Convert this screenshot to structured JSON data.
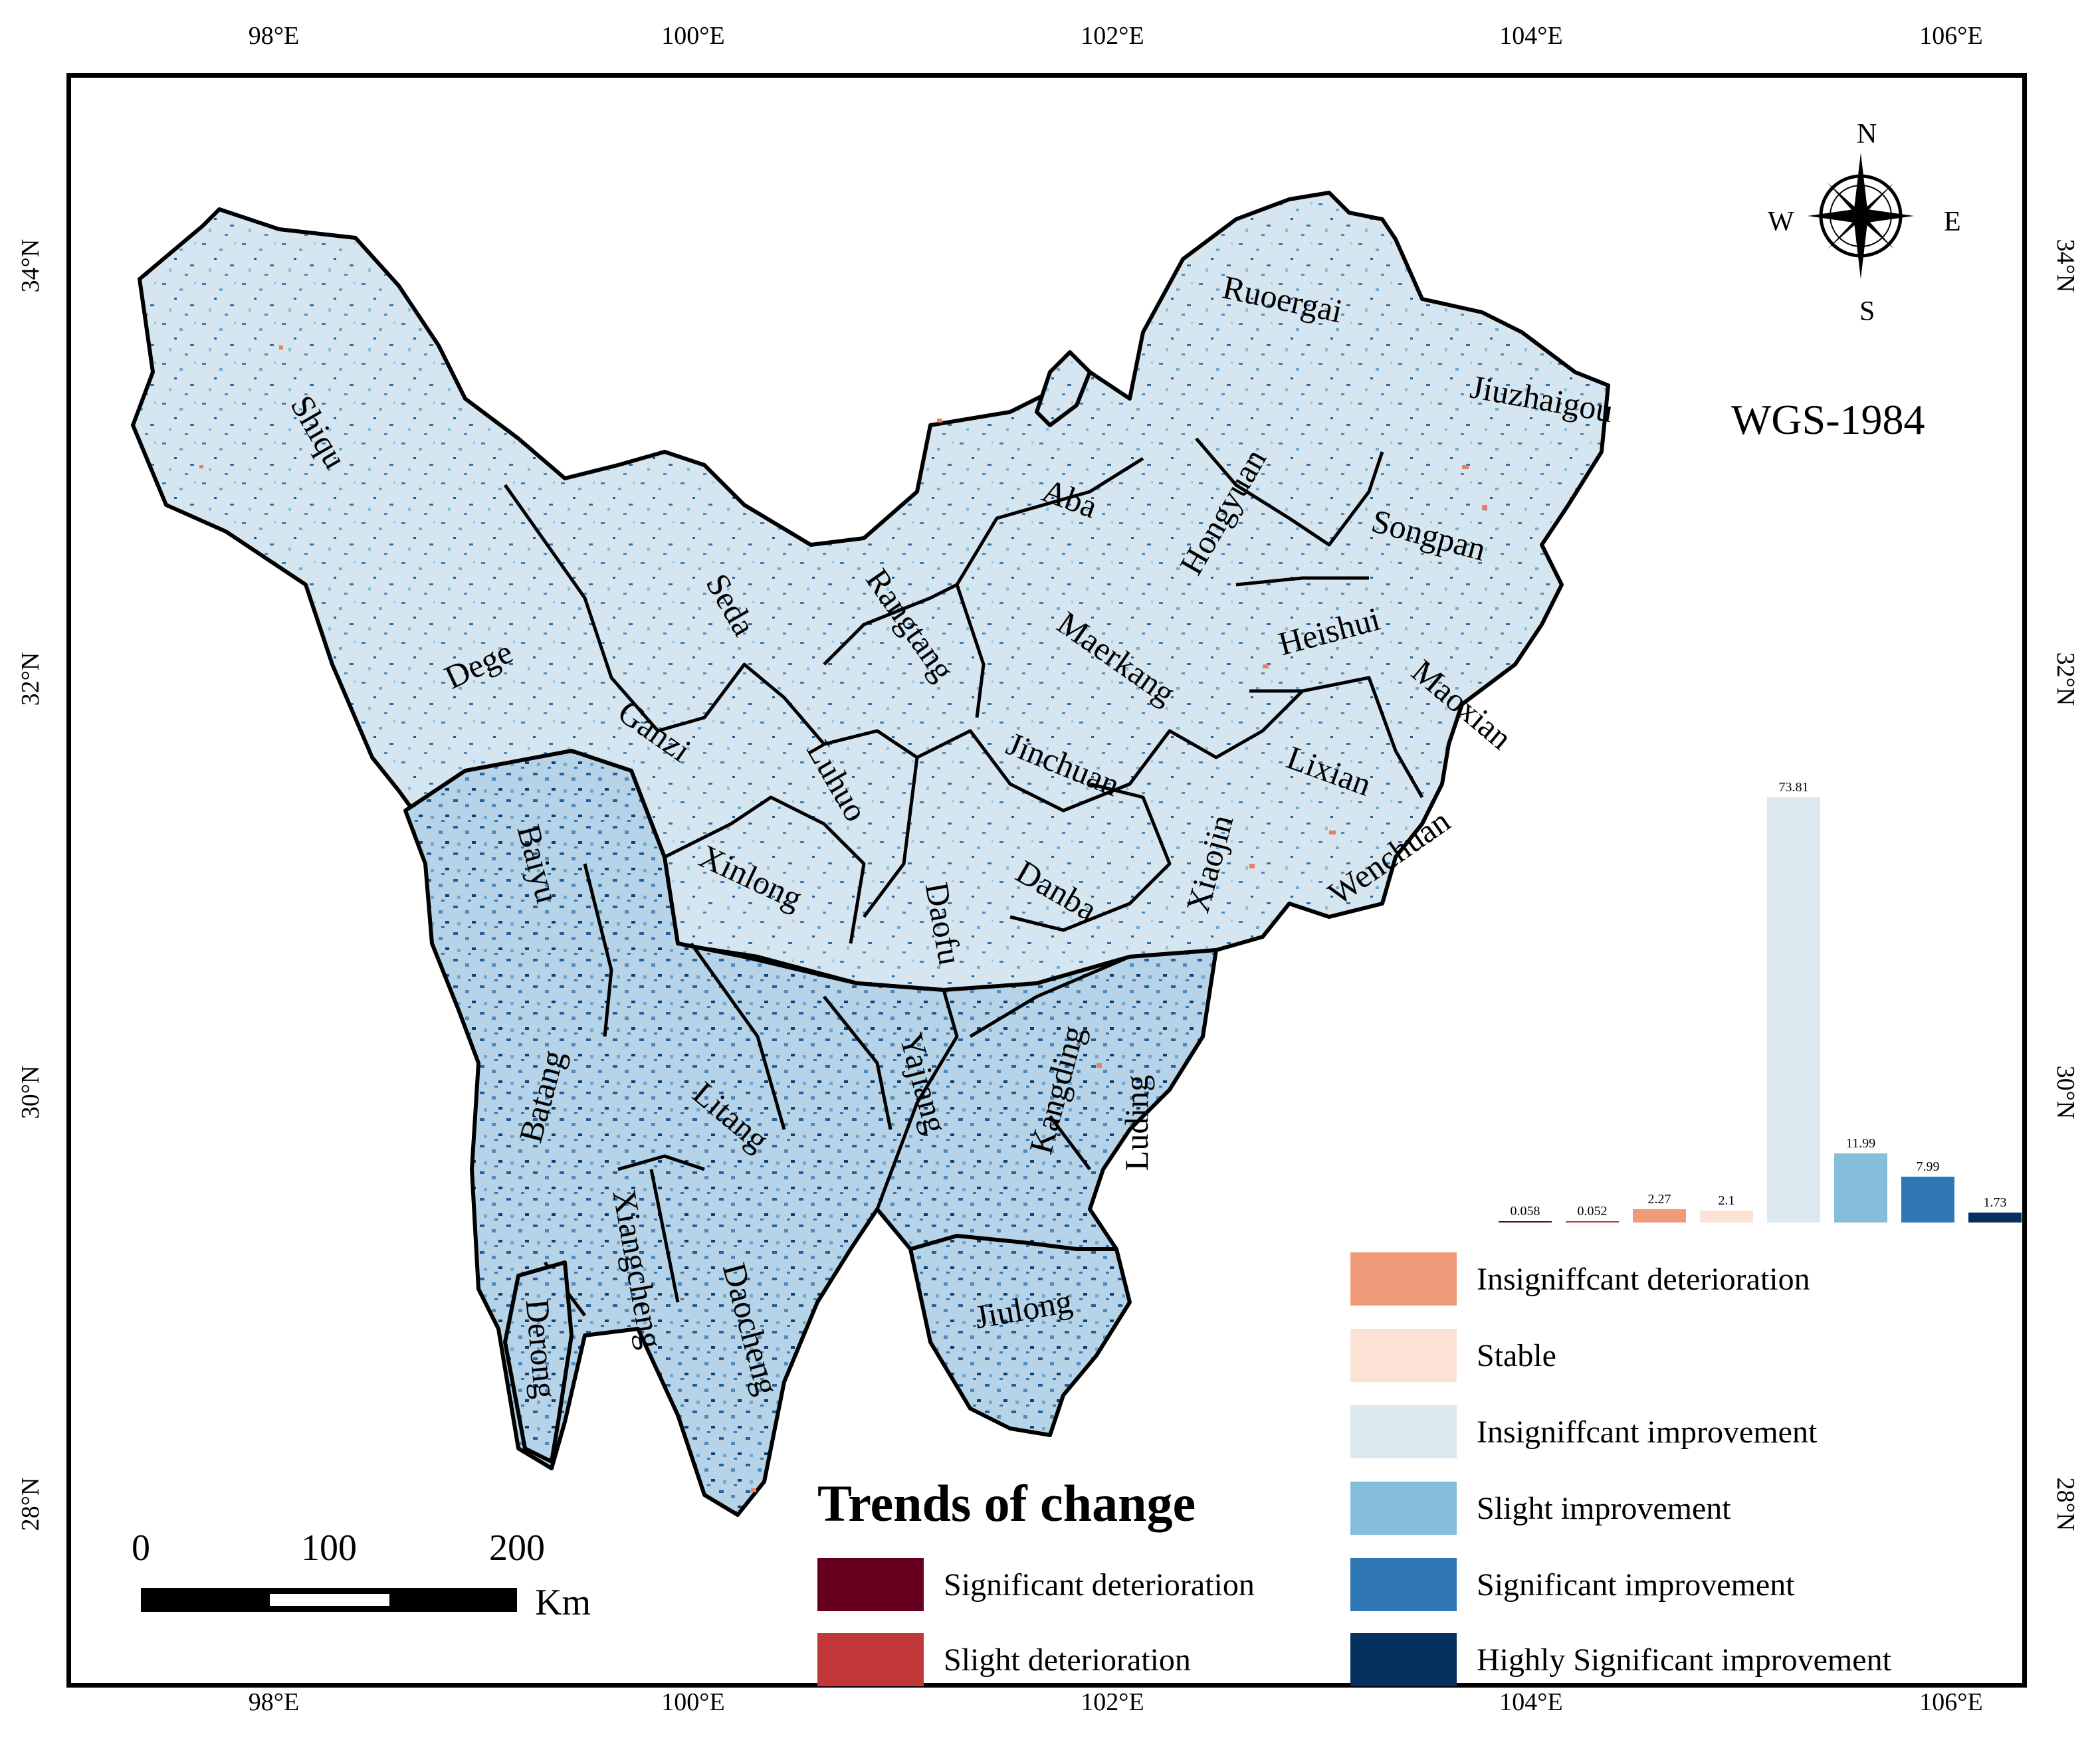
{
  "coordinate_system": "WGS-1984",
  "lon_ticks": [
    "98°E",
    "100°E",
    "102°E",
    "104°E",
    "106°E"
  ],
  "lat_ticks": [
    "34°N",
    "32°N",
    "30°N",
    "28°N"
  ],
  "compass": {
    "n": "N",
    "s": "S",
    "e": "E",
    "w": "W",
    "icon": "compass-rose-icon"
  },
  "scale_bar": {
    "labels": [
      "0",
      "100",
      "200"
    ],
    "unit": "Km"
  },
  "counties": [
    "Shiqu",
    "Seda",
    "Dege",
    "Ganzi",
    "Rangtang",
    "Aba",
    "Ruoergai",
    "Jiuzhaigou",
    "Hongyuan",
    "Songpan",
    "Maerkang",
    "Heishui",
    "Maoxian",
    "Lixian",
    "Jinchuan",
    "Luhuo",
    "Xinlong",
    "Baiyu",
    "Daofu",
    "Danba",
    "Xiaojin",
    "Wenchuan",
    "Kangding",
    "Yajiang",
    "Litang",
    "Batang",
    "Luding",
    "Xiangcheng",
    "Daocheng",
    "Derong",
    "Jiulong"
  ],
  "legend": {
    "title": "Trends of change",
    "items": [
      {
        "label": "Significant deterioration",
        "color": "#67001f"
      },
      {
        "label": "Slight deterioration",
        "color": "#c1373a"
      },
      {
        "label": "Insigniffcant deterioration",
        "color": "#ef9b7a"
      },
      {
        "label": "Stable",
        "color": "#fbe2d5"
      },
      {
        "label": "Insigniffcant improvement",
        "color": "#dbe8f0"
      },
      {
        "label": "Slight improvement",
        "color": "#86bdda"
      },
      {
        "label": "Significant improvement",
        "color": "#2f78b5"
      },
      {
        "label": "Highly Significant improvement",
        "color": "#05305f"
      }
    ]
  },
  "chart_data": {
    "type": "bar",
    "categories": [
      "Significant deterioration",
      "Slight deterioration",
      "Insigniffcant deterioration",
      "Stable",
      "Insigniffcant improvement",
      "Slight improvement",
      "Significant improvement",
      "Highly Significant improvement"
    ],
    "values": [
      0.058,
      0.052,
      2.27,
      2.1,
      73.81,
      11.99,
      7.99,
      1.73
    ],
    "value_labels": [
      "0.058",
      "0.052",
      "2.27",
      "2.1",
      "73.81",
      "11.99",
      "7.99",
      "1.73"
    ],
    "colors": [
      "#67001f",
      "#c1373a",
      "#ef9b7a",
      "#fbe2d5",
      "#dbe8f0",
      "#86bdda",
      "#2f78b5",
      "#05305f"
    ]
  }
}
